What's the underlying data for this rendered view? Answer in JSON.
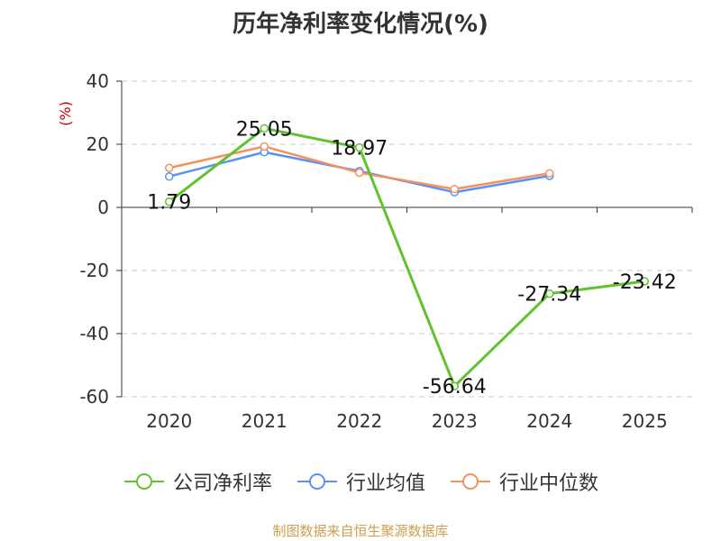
{
  "chart_data": {
    "type": "line",
    "title": "历年净利率变化情况(%)",
    "ylabel": "(%)",
    "categories": [
      "2020",
      "2021",
      "2022",
      "2023",
      "2024",
      "2025"
    ],
    "ylim": [
      -60,
      40
    ],
    "yticks": [
      40,
      20,
      0,
      -20,
      -40,
      -60
    ],
    "grid": true,
    "legend_position": "bottom",
    "series": [
      {
        "name": "公司净利率",
        "color": "#5ec32c",
        "values": [
          1.79,
          25.05,
          18.97,
          -56.64,
          -27.34,
          -23.42
        ],
        "labels": [
          "1.79",
          "25.05",
          "18.97",
          "-56.64",
          "-27.34",
          "-23.42"
        ]
      },
      {
        "name": "行业均值",
        "color": "#5b8ff9",
        "values": [
          9.8,
          17.5,
          11.5,
          4.8,
          10.0,
          null
        ]
      },
      {
        "name": "行业中位数",
        "color": "#f6905d",
        "values": [
          12.5,
          19.3,
          11.0,
          5.8,
          10.8,
          null
        ]
      }
    ]
  },
  "source": "制图数据来自恒生聚源数据库"
}
